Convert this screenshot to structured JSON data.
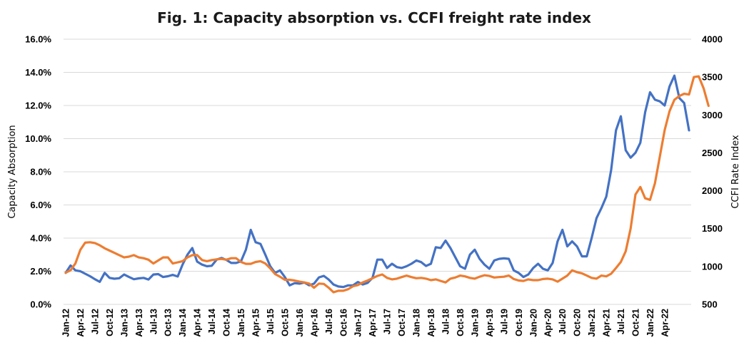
{
  "chart_data": {
    "type": "line",
    "title": "Fig. 1: Capacity absorption vs. CCFI freight rate index",
    "ylabel": "Capacity Absorption",
    "y2label": "CCFI Rate Index",
    "ylim": [
      0,
      0.16
    ],
    "y2lim": [
      500,
      4000
    ],
    "yticks": [
      "0.0%",
      "2.0%",
      "4.0%",
      "6.0%",
      "8.0%",
      "10.0%",
      "12.0%",
      "14.0%",
      "16.0%"
    ],
    "y2ticks": [
      "500",
      "1000",
      "1500",
      "2000",
      "2500",
      "3000",
      "3500",
      "4000"
    ],
    "grid": true,
    "x_tick_labels": [
      "Jan-12",
      "Apr-12",
      "Jul-12",
      "Oct-12",
      "Jan-13",
      "Apr-13",
      "Jul-13",
      "Oct-13",
      "Jan-14",
      "Apr-14",
      "Jul-14",
      "Oct-14",
      "Jan-15",
      "Apr-15",
      "Jul-15",
      "Oct-15",
      "Jan-16",
      "Apr-16",
      "Jul-16",
      "Oct-16",
      "Jan-17",
      "Apr-17",
      "Jul-17",
      "Oct-17",
      "Jan-18",
      "Apr-18",
      "Jul-18",
      "Oct-18",
      "Jan-19",
      "Apr-19",
      "Jul-19",
      "Oct-19",
      "Jan-20",
      "Apr-20",
      "Jul-20",
      "Oct-20",
      "Jan-21",
      "Apr-21",
      "Jul-21",
      "Oct-21",
      "Jan-22",
      "Apr-22"
    ],
    "x_start": "Jan-12",
    "x_step": "month",
    "series": [
      {
        "axis": "left",
        "color": "#4472c4",
        "values": [
          0.019,
          0.0235,
          0.0205,
          0.02,
          0.0185,
          0.017,
          0.0152,
          0.0136,
          0.019,
          0.016,
          0.0155,
          0.0158,
          0.018,
          0.0165,
          0.0152,
          0.0157,
          0.016,
          0.015,
          0.018,
          0.0183,
          0.0165,
          0.017,
          0.0178,
          0.0168,
          0.024,
          0.03,
          0.034,
          0.0258,
          0.024,
          0.023,
          0.0233,
          0.027,
          0.028,
          0.0268,
          0.025,
          0.025,
          0.026,
          0.033,
          0.045,
          0.0375,
          0.0365,
          0.03,
          0.023,
          0.019,
          0.0205,
          0.0165,
          0.0115,
          0.0128,
          0.0125,
          0.0132,
          0.0115,
          0.0125,
          0.0163,
          0.0172,
          0.015,
          0.012,
          0.0108,
          0.0105,
          0.0115,
          0.0115,
          0.0135,
          0.012,
          0.013,
          0.016,
          0.027,
          0.027,
          0.022,
          0.0245,
          0.0225,
          0.022,
          0.023,
          0.0245,
          0.0265,
          0.0255,
          0.0232,
          0.0245,
          0.0345,
          0.034,
          0.0385,
          0.034,
          0.0285,
          0.023,
          0.0215,
          0.03,
          0.033,
          0.0275,
          0.024,
          0.0215,
          0.0265,
          0.0275,
          0.0278,
          0.0275,
          0.0205,
          0.019,
          0.0165,
          0.018,
          0.022,
          0.0245,
          0.0215,
          0.0205,
          0.025,
          0.038,
          0.045,
          0.035,
          0.038,
          0.035,
          0.029,
          0.029,
          0.04,
          0.052,
          0.058,
          0.065,
          0.081,
          0.105,
          0.1135,
          0.093,
          0.0885,
          0.0915,
          0.0975,
          0.116,
          0.128,
          0.1235,
          0.1225,
          0.12,
          0.1315,
          0.138,
          0.1245,
          0.1215,
          0.105
        ]
      },
      {
        "axis": "right",
        "color": "#ed7d31",
        "values": [
          920,
          950,
          1040,
          1220,
          1315,
          1320,
          1310,
          1280,
          1240,
          1210,
          1180,
          1150,
          1120,
          1130,
          1150,
          1120,
          1110,
          1090,
          1040,
          1080,
          1120,
          1120,
          1040,
          1055,
          1070,
          1120,
          1150,
          1150,
          1085,
          1070,
          1085,
          1095,
          1100,
          1090,
          1110,
          1110,
          1060,
          1035,
          1035,
          1060,
          1070,
          1040,
          975,
          900,
          865,
          825,
          825,
          815,
          800,
          790,
          775,
          720,
          775,
          770,
          720,
          660,
          680,
          680,
          700,
          740,
          755,
          790,
          815,
          845,
          875,
          895,
          850,
          830,
          840,
          860,
          880,
          860,
          845,
          850,
          840,
          820,
          830,
          810,
          790,
          840,
          855,
          880,
          870,
          850,
          840,
          865,
          885,
          875,
          855,
          860,
          865,
          880,
          835,
          815,
          810,
          830,
          820,
          820,
          835,
          840,
          830,
          800,
          840,
          880,
          950,
          925,
          910,
          880,
          850,
          840,
          880,
          870,
          905,
          980,
          1060,
          1200,
          1500,
          1950,
          2050,
          1900,
          1880,
          2100,
          2450,
          2800,
          3050,
          3200,
          3250,
          3280,
          3270,
          3500,
          3510,
          3350,
          3120
        ]
      }
    ]
  }
}
